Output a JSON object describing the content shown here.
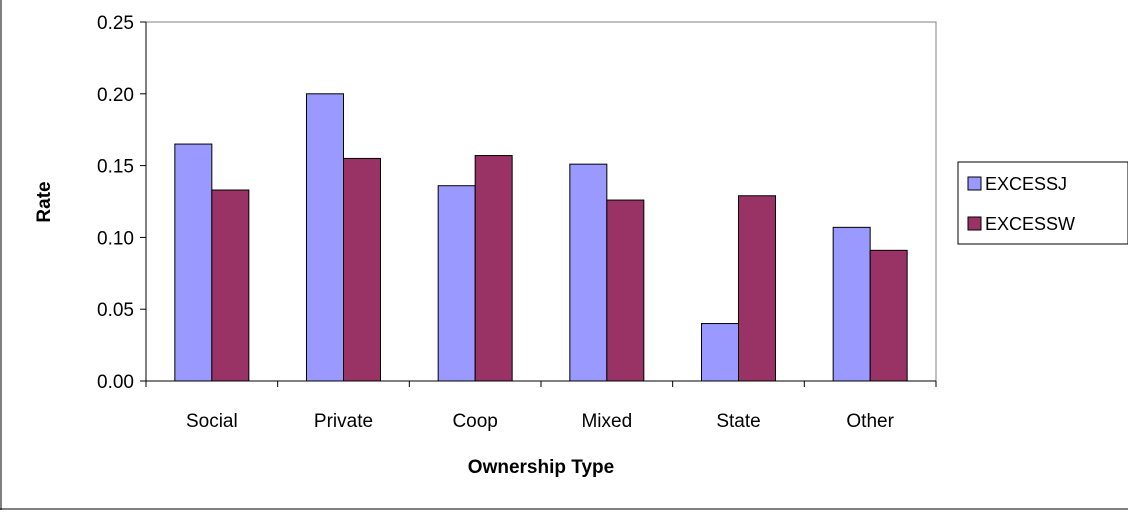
{
  "chart_data": {
    "type": "bar",
    "title": "",
    "xlabel": "Ownership Type",
    "ylabel": "Rate",
    "categories": [
      "Social",
      "Private",
      "Coop",
      "Mixed",
      "State",
      "Other"
    ],
    "series": [
      {
        "name": "EXCESSJ",
        "color": "#9999FF",
        "values": [
          0.165,
          0.2,
          0.136,
          0.151,
          0.04,
          0.107
        ]
      },
      {
        "name": "EXCESSW",
        "color": "#993366",
        "values": [
          0.133,
          0.155,
          0.157,
          0.126,
          0.129,
          0.091
        ]
      }
    ],
    "ylim": [
      0,
      0.25
    ],
    "yticks": [
      "0.00",
      "0.05",
      "0.10",
      "0.15",
      "0.20",
      "0.25"
    ],
    "grid": false,
    "legend_position": "right"
  }
}
